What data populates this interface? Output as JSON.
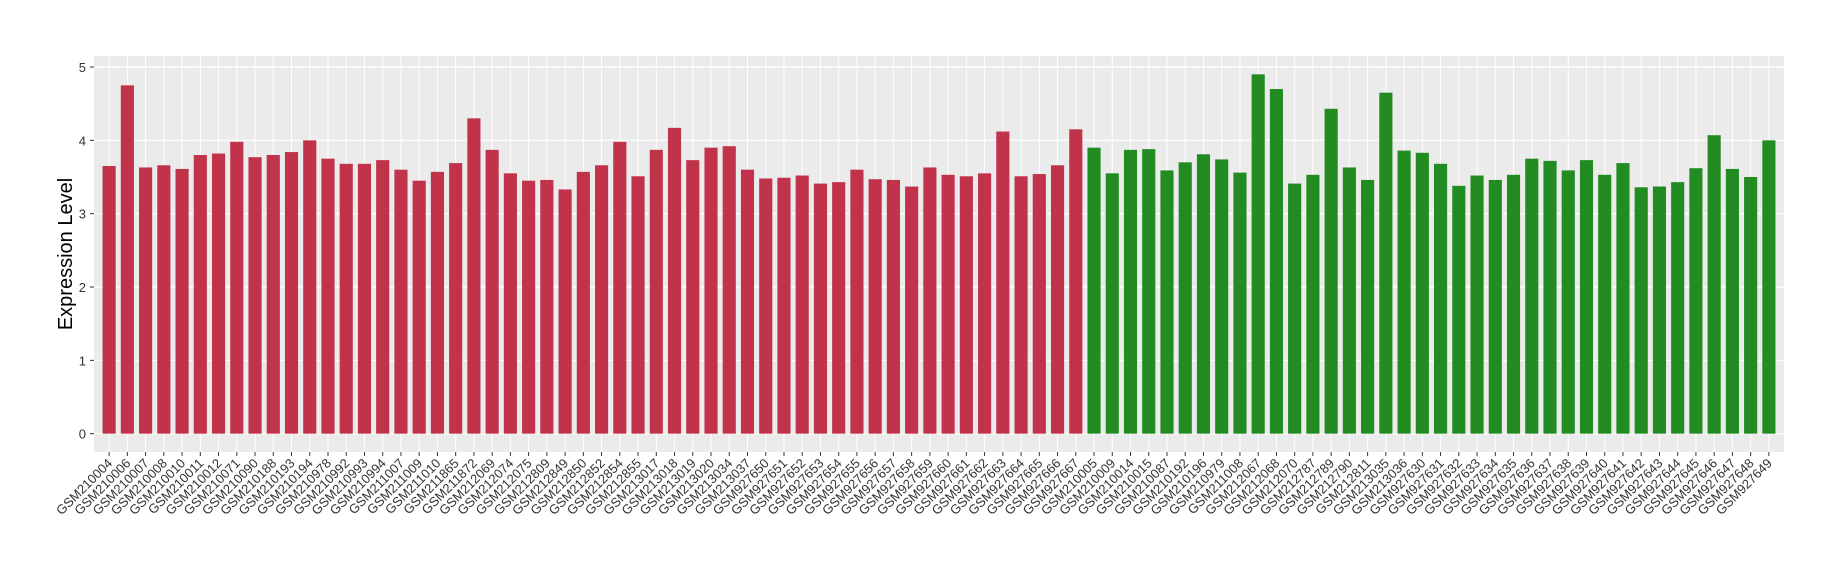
{
  "chart_data": {
    "type": "bar",
    "y_label": "Expression Level",
    "categories": [
      "GSM210004",
      "GSM210006",
      "GSM210007",
      "GSM210008",
      "GSM210010",
      "GSM210011",
      "GSM210012",
      "GSM210071",
      "GSM210090",
      "GSM210188",
      "GSM210193",
      "GSM210194",
      "GSM210978",
      "GSM210992",
      "GSM210993",
      "GSM210994",
      "GSM211007",
      "GSM211009",
      "GSM211010",
      "GSM211865",
      "GSM211872",
      "GSM212069",
      "GSM212074",
      "GSM212075",
      "GSM212809",
      "GSM212849",
      "GSM212850",
      "GSM212852",
      "GSM212854",
      "GSM212855",
      "GSM213017",
      "GSM213018",
      "GSM213019",
      "GSM213020",
      "GSM213034",
      "GSM213037",
      "GSM927650",
      "GSM927651",
      "GSM927652",
      "GSM927653",
      "GSM927654",
      "GSM927655",
      "GSM927656",
      "GSM927657",
      "GSM927658",
      "GSM927659",
      "GSM927660",
      "GSM927661",
      "GSM927662",
      "GSM927663",
      "GSM927664",
      "GSM927665",
      "GSM927666",
      "GSM927667",
      "GSM210005",
      "GSM210009",
      "GSM210014",
      "GSM210015",
      "GSM210087",
      "GSM210192",
      "GSM210196",
      "GSM210979",
      "GSM211008",
      "GSM212067",
      "GSM212068",
      "GSM212070",
      "GSM212787",
      "GSM212789",
      "GSM212790",
      "GSM212811",
      "GSM213035",
      "GSM213036",
      "GSM927630",
      "GSM927631",
      "GSM927632",
      "GSM927633",
      "GSM927634",
      "GSM927635",
      "GSM927636",
      "GSM927637",
      "GSM927638",
      "GSM927639",
      "GSM927640",
      "GSM927641",
      "GSM927642",
      "GSM927643",
      "GSM927644",
      "GSM927645",
      "GSM927646",
      "GSM927647",
      "GSM927648",
      "GSM927649"
    ],
    "values": [
      3.65,
      4.75,
      3.63,
      3.66,
      3.61,
      3.8,
      3.82,
      3.98,
      3.77,
      3.8,
      3.84,
      4.0,
      3.75,
      3.68,
      3.68,
      3.73,
      3.6,
      3.45,
      3.57,
      3.69,
      4.3,
      3.87,
      3.55,
      3.45,
      3.46,
      3.33,
      3.57,
      3.66,
      3.98,
      3.51,
      3.87,
      4.17,
      3.73,
      3.9,
      3.92,
      3.6,
      3.48,
      3.49,
      3.52,
      3.41,
      3.43,
      3.6,
      3.47,
      3.46,
      3.37,
      3.63,
      3.53,
      3.51,
      3.55,
      4.12,
      3.51,
      3.54,
      3.66,
      4.15,
      3.9,
      3.55,
      3.87,
      3.88,
      3.59,
      3.7,
      3.81,
      3.74,
      3.56,
      4.9,
      4.7,
      3.41,
      3.53,
      4.43,
      3.63,
      3.46,
      4.65,
      3.86,
      3.83,
      3.68,
      3.38,
      3.52,
      3.46,
      3.53,
      3.75,
      3.72,
      3.59,
      3.73,
      3.53,
      3.69,
      3.36,
      3.37,
      3.43,
      3.62,
      4.07,
      3.61,
      3.5,
      4.0
    ],
    "colors": [
      "#c1334a",
      "#c1334a",
      "#c1334a",
      "#c1334a",
      "#c1334a",
      "#c1334a",
      "#c1334a",
      "#c1334a",
      "#c1334a",
      "#c1334a",
      "#c1334a",
      "#c1334a",
      "#c1334a",
      "#c1334a",
      "#c1334a",
      "#c1334a",
      "#c1334a",
      "#c1334a",
      "#c1334a",
      "#c1334a",
      "#c1334a",
      "#c1334a",
      "#c1334a",
      "#c1334a",
      "#c1334a",
      "#c1334a",
      "#c1334a",
      "#c1334a",
      "#c1334a",
      "#c1334a",
      "#c1334a",
      "#c1334a",
      "#c1334a",
      "#c1334a",
      "#c1334a",
      "#c1334a",
      "#c1334a",
      "#c1334a",
      "#c1334a",
      "#c1334a",
      "#c1334a",
      "#c1334a",
      "#c1334a",
      "#c1334a",
      "#c1334a",
      "#c1334a",
      "#c1334a",
      "#c1334a",
      "#c1334a",
      "#c1334a",
      "#c1334a",
      "#c1334a",
      "#c1334a",
      "#c1334a",
      "#228b22",
      "#228b22",
      "#228b22",
      "#228b22",
      "#228b22",
      "#228b22",
      "#228b22",
      "#228b22",
      "#228b22",
      "#228b22",
      "#228b22",
      "#228b22",
      "#228b22",
      "#228b22",
      "#228b22",
      "#228b22",
      "#228b22",
      "#228b22",
      "#228b22",
      "#228b22",
      "#228b22",
      "#228b22",
      "#228b22",
      "#228b22",
      "#228b22",
      "#228b22",
      "#228b22",
      "#228b22",
      "#228b22",
      "#228b22",
      "#228b22",
      "#228b22",
      "#228b22",
      "#228b22",
      "#228b22",
      "#228b22",
      "#228b22",
      "#228b22"
    ],
    "ylim": [
      -0.25,
      5.15
    ],
    "yticks": [
      0,
      1,
      2,
      3,
      4,
      5
    ],
    "grid": true
  }
}
